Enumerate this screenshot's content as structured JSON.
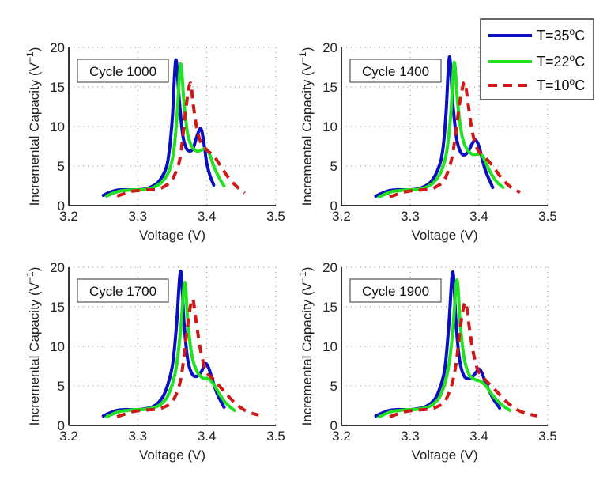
{
  "chart_data": [
    {
      "type": "line",
      "annotation": "Cycle 1000",
      "xlabel": "Voltage (V)",
      "ylabel": "Incremental Capacity (V⁻¹)",
      "xlim": [
        3.2,
        3.5
      ],
      "ylim": [
        0,
        20
      ],
      "xticks": [
        "3.2",
        "3.3",
        "3.4",
        "3.5"
      ],
      "yticks": [
        "0",
        "5",
        "10",
        "15",
        "20"
      ],
      "grid": true,
      "series": [
        {
          "name": "T=35°C",
          "x": [
            3.25,
            3.26,
            3.27,
            3.28,
            3.29,
            3.3,
            3.31,
            3.32,
            3.33,
            3.34,
            3.345,
            3.35,
            3.355,
            3.36,
            3.365,
            3.37,
            3.375,
            3.38,
            3.385,
            3.39,
            3.393,
            3.397,
            3.4,
            3.405,
            3.41
          ],
          "y": [
            1.3,
            1.7,
            1.95,
            2.0,
            2.0,
            2.0,
            2.1,
            2.4,
            3.0,
            4.5,
            6.5,
            11.0,
            18.4,
            13.5,
            9.0,
            7.3,
            6.9,
            7.2,
            8.6,
            9.7,
            9.3,
            7.2,
            5.3,
            3.7,
            2.6
          ]
        },
        {
          "name": "T=22°C",
          "x": [
            3.255,
            3.265,
            3.275,
            3.285,
            3.295,
            3.305,
            3.315,
            3.325,
            3.335,
            3.345,
            3.352,
            3.357,
            3.362,
            3.367,
            3.372,
            3.378,
            3.385,
            3.392,
            3.398,
            3.404,
            3.41,
            3.418,
            3.425
          ],
          "y": [
            1.2,
            1.6,
            1.85,
            1.95,
            2.0,
            2.0,
            2.1,
            2.4,
            3.0,
            4.3,
            6.8,
            11.5,
            17.9,
            13.0,
            9.2,
            7.5,
            6.9,
            7.0,
            7.2,
            6.5,
            5.0,
            3.5,
            2.5
          ]
        },
        {
          "name": "T=10°C",
          "x": [
            3.27,
            3.28,
            3.29,
            3.3,
            3.31,
            3.32,
            3.33,
            3.34,
            3.35,
            3.36,
            3.365,
            3.37,
            3.376,
            3.38,
            3.385,
            3.39,
            3.395,
            3.4,
            3.41,
            3.42,
            3.43,
            3.44,
            3.45,
            3.455
          ],
          "y": [
            1.2,
            1.5,
            1.8,
            1.9,
            2.0,
            2.0,
            2.1,
            2.5,
            3.3,
            5.5,
            8.5,
            12.5,
            15.5,
            13.0,
            10.0,
            8.3,
            7.5,
            7.0,
            6.3,
            5.0,
            3.7,
            2.7,
            1.9,
            1.6
          ]
        }
      ]
    },
    {
      "type": "line",
      "annotation": "Cycle 1400",
      "xlabel": "Voltage (V)",
      "ylabel": "Incremental Capacity (V⁻¹)",
      "xlim": [
        3.2,
        3.5
      ],
      "ylim": [
        0,
        20
      ],
      "xticks": [
        "3.2",
        "3.3",
        "3.4",
        "3.5"
      ],
      "yticks": [
        "0",
        "5",
        "10",
        "15",
        "20"
      ],
      "grid": true,
      "series": [
        {
          "name": "T=35°C",
          "x": [
            3.25,
            3.26,
            3.27,
            3.28,
            3.29,
            3.3,
            3.31,
            3.32,
            3.33,
            3.34,
            3.347,
            3.352,
            3.357,
            3.362,
            3.367,
            3.372,
            3.378,
            3.384,
            3.39,
            3.395,
            3.4,
            3.405,
            3.41,
            3.42
          ],
          "y": [
            1.2,
            1.6,
            1.9,
            2.0,
            2.0,
            2.0,
            2.1,
            2.4,
            3.0,
            4.5,
            6.8,
            11.5,
            18.8,
            13.0,
            8.8,
            7.0,
            6.4,
            6.8,
            7.8,
            8.3,
            7.5,
            5.8,
            4.3,
            2.3
          ]
        },
        {
          "name": "T=22°C",
          "x": [
            3.255,
            3.265,
            3.275,
            3.285,
            3.295,
            3.305,
            3.315,
            3.325,
            3.335,
            3.345,
            3.353,
            3.359,
            3.364,
            3.369,
            3.375,
            3.382,
            3.39,
            3.397,
            3.404,
            3.41,
            3.418,
            3.426,
            3.435
          ],
          "y": [
            1.1,
            1.5,
            1.8,
            1.9,
            2.0,
            2.0,
            2.1,
            2.4,
            3.0,
            4.3,
            6.8,
            11.5,
            18.1,
            13.0,
            9.0,
            7.2,
            6.5,
            6.5,
            6.4,
            5.4,
            4.0,
            3.0,
            2.3
          ]
        },
        {
          "name": "T=10°C",
          "x": [
            3.27,
            3.28,
            3.29,
            3.3,
            3.31,
            3.32,
            3.33,
            3.34,
            3.35,
            3.36,
            3.366,
            3.372,
            3.379,
            3.384,
            3.389,
            3.394,
            3.4,
            3.41,
            3.42,
            3.43,
            3.44,
            3.45,
            3.46
          ],
          "y": [
            1.1,
            1.4,
            1.7,
            1.85,
            1.95,
            2.0,
            2.1,
            2.5,
            3.3,
            5.8,
            9.0,
            13.0,
            15.6,
            13.0,
            10.0,
            8.0,
            6.8,
            6.0,
            5.0,
            3.8,
            2.8,
            2.1,
            1.7
          ]
        }
      ]
    },
    {
      "type": "line",
      "annotation": "Cycle 1700",
      "xlabel": "Voltage (V)",
      "ylabel": "Incremental Capacity (V⁻¹)",
      "xlim": [
        3.2,
        3.5
      ],
      "ylim": [
        0,
        20
      ],
      "xticks": [
        "3.2",
        "3.3",
        "3.4",
        "3.5"
      ],
      "yticks": [
        "0",
        "5",
        "10",
        "15",
        "20"
      ],
      "grid": true,
      "series": [
        {
          "name": "T=35°C",
          "x": [
            3.25,
            3.26,
            3.27,
            3.28,
            3.29,
            3.3,
            3.31,
            3.32,
            3.33,
            3.34,
            3.35,
            3.356,
            3.362,
            3.367,
            3.372,
            3.378,
            3.385,
            3.392,
            3.398,
            3.403,
            3.408,
            3.415,
            3.425
          ],
          "y": [
            1.2,
            1.6,
            1.9,
            2.0,
            2.0,
            2.0,
            2.1,
            2.3,
            2.9,
            4.3,
            7.5,
            12.5,
            19.5,
            13.0,
            8.5,
            6.6,
            6.2,
            6.8,
            7.8,
            7.2,
            5.8,
            4.0,
            2.3
          ]
        },
        {
          "name": "T=22°C",
          "x": [
            3.255,
            3.265,
            3.275,
            3.285,
            3.295,
            3.305,
            3.315,
            3.325,
            3.335,
            3.345,
            3.355,
            3.362,
            3.368,
            3.373,
            3.379,
            3.386,
            3.394,
            3.402,
            3.41,
            3.418,
            3.428,
            3.44
          ],
          "y": [
            1.1,
            1.5,
            1.8,
            1.9,
            2.0,
            2.0,
            2.1,
            2.3,
            2.8,
            4.0,
            7.0,
            12.0,
            18.1,
            12.5,
            8.6,
            6.8,
            6.0,
            5.9,
            5.2,
            4.0,
            2.8,
            1.9
          ]
        },
        {
          "name": "T=10°C",
          "x": [
            3.27,
            3.28,
            3.29,
            3.3,
            3.31,
            3.32,
            3.33,
            3.34,
            3.35,
            3.36,
            3.366,
            3.372,
            3.379,
            3.384,
            3.389,
            3.394,
            3.4,
            3.41,
            3.42,
            3.43,
            3.44,
            3.45,
            3.46,
            3.475
          ],
          "y": [
            1.1,
            1.4,
            1.7,
            1.85,
            1.95,
            2.0,
            2.1,
            2.4,
            3.0,
            5.0,
            8.0,
            12.5,
            16.0,
            13.5,
            10.5,
            8.3,
            6.7,
            5.8,
            4.8,
            3.8,
            2.9,
            2.2,
            1.7,
            1.3
          ]
        }
      ]
    },
    {
      "type": "line",
      "annotation": "Cycle 1900",
      "xlabel": "Voltage (V)",
      "ylabel": "Incremental Capacity (V⁻¹)",
      "xlim": [
        3.2,
        3.5
      ],
      "ylim": [
        0,
        20
      ],
      "xticks": [
        "3.2",
        "3.3",
        "3.4",
        "3.5"
      ],
      "yticks": [
        "0",
        "5",
        "10",
        "15",
        "20"
      ],
      "grid": true,
      "series": [
        {
          "name": "T=35°C",
          "x": [
            3.25,
            3.26,
            3.27,
            3.28,
            3.29,
            3.3,
            3.31,
            3.32,
            3.33,
            3.34,
            3.35,
            3.356,
            3.362,
            3.367,
            3.372,
            3.378,
            3.385,
            3.392,
            3.4,
            3.405,
            3.41,
            3.42,
            3.43
          ],
          "y": [
            1.2,
            1.6,
            1.9,
            2.0,
            2.0,
            2.0,
            2.1,
            2.3,
            2.8,
            4.0,
            7.0,
            12.5,
            19.4,
            12.5,
            8.2,
            6.3,
            5.9,
            6.3,
            7.1,
            6.5,
            5.3,
            3.5,
            2.2
          ]
        },
        {
          "name": "T=22°C",
          "x": [
            3.255,
            3.265,
            3.275,
            3.285,
            3.295,
            3.305,
            3.315,
            3.325,
            3.335,
            3.345,
            3.355,
            3.362,
            3.368,
            3.373,
            3.379,
            3.386,
            3.394,
            3.402,
            3.41,
            3.42,
            3.432,
            3.445
          ],
          "y": [
            1.1,
            1.5,
            1.8,
            1.9,
            2.0,
            2.0,
            2.1,
            2.3,
            2.8,
            4.0,
            7.0,
            12.0,
            18.4,
            12.5,
            8.3,
            6.4,
            5.8,
            5.6,
            5.0,
            3.8,
            2.7,
            1.9
          ]
        },
        {
          "name": "T=10°C",
          "x": [
            3.27,
            3.28,
            3.29,
            3.3,
            3.31,
            3.32,
            3.33,
            3.34,
            3.35,
            3.36,
            3.367,
            3.373,
            3.38,
            3.385,
            3.39,
            3.395,
            3.4,
            3.41,
            3.42,
            3.43,
            3.44,
            3.45,
            3.46,
            3.47,
            3.485
          ],
          "y": [
            1.1,
            1.4,
            1.7,
            1.85,
            1.95,
            2.0,
            2.1,
            2.4,
            3.0,
            5.0,
            8.0,
            12.5,
            15.6,
            13.0,
            10.0,
            8.0,
            6.7,
            5.7,
            4.8,
            3.9,
            3.0,
            2.3,
            1.8,
            1.5,
            1.2
          ]
        }
      ]
    }
  ],
  "legend": {
    "placement": "top-right",
    "entries": [
      {
        "label": "T=35°C",
        "color": "#0a0fc0",
        "style": "solid"
      },
      {
        "label": "T=22°C",
        "color": "#22e022",
        "style": "solid"
      },
      {
        "label": "T=10°C",
        "color": "#d01818",
        "style": "dashed"
      }
    ]
  },
  "colors": {
    "T35": "#0a0fc0",
    "T22": "#22e022",
    "T10": "#d01818",
    "axis": "#333333",
    "grid": "#888888"
  }
}
